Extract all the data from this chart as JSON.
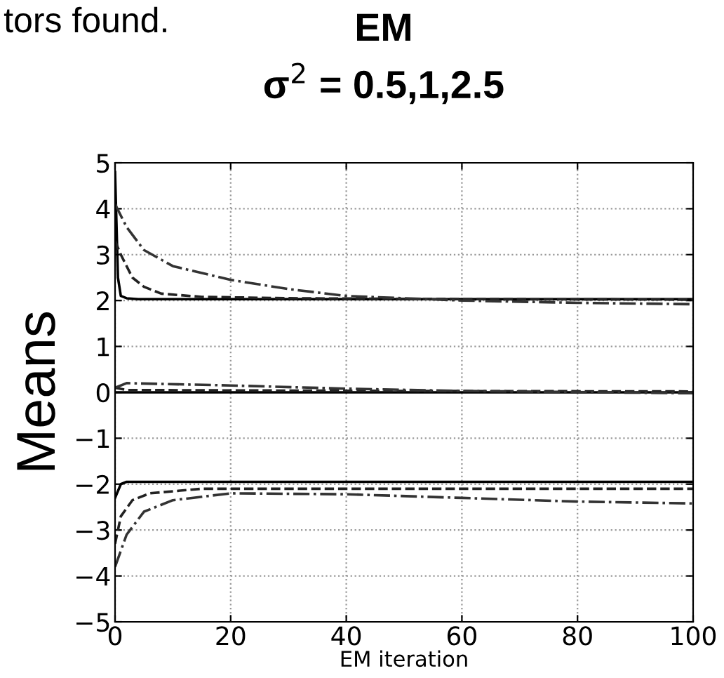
{
  "chart_data": {
    "type": "line",
    "title": "EM",
    "subtitle": "σ$^{2}$ = 0.5,1,2.5",
    "xlabel": "EM iteration",
    "ylabel": "Means",
    "annotations": [
      "tors found."
    ],
    "xlim": [
      0,
      100
    ],
    "ylim": [
      -5,
      5
    ],
    "xticks": [
      0,
      20,
      40,
      60,
      80,
      100
    ],
    "yticks": [
      -5,
      -4,
      -3,
      -2,
      -1,
      0,
      1,
      2,
      3,
      4,
      5
    ],
    "grid": true,
    "marker": "none",
    "series": [
      {
        "color": "#000000",
        "line_style": "solid",
        "x": [
          0,
          0.5,
          1,
          2,
          4,
          100
        ],
        "values": [
          4.8,
          2.5,
          2.1,
          2.05,
          2.03,
          2.03
        ]
      },
      {
        "color": "#222222",
        "line_style": "dashed",
        "x": [
          0,
          1,
          3,
          5,
          8,
          15,
          30,
          60,
          100
        ],
        "values": [
          3.3,
          3.0,
          2.5,
          2.3,
          2.15,
          2.08,
          2.05,
          2.03,
          2.02
        ]
      },
      {
        "color": "#333333",
        "line_style": "dashdot",
        "x": [
          0,
          2,
          5,
          10,
          20,
          30,
          40,
          50,
          60,
          80,
          100
        ],
        "values": [
          4.1,
          3.6,
          3.1,
          2.75,
          2.45,
          2.25,
          2.1,
          2.05,
          2.0,
          1.95,
          1.92
        ]
      },
      {
        "color": "#000000",
        "line_style": "solid",
        "x": [
          0,
          100
        ],
        "values": [
          0,
          0
        ]
      },
      {
        "color": "#222222",
        "line_style": "dashed",
        "x": [
          0,
          2,
          50,
          100
        ],
        "values": [
          0.1,
          0.05,
          0.03,
          0.02
        ]
      },
      {
        "color": "#333333",
        "line_style": "dashdot",
        "x": [
          0,
          2,
          20,
          40,
          60,
          100
        ],
        "values": [
          0.1,
          0.2,
          0.15,
          0.08,
          0.03,
          -0.02
        ]
      },
      {
        "color": "#000000",
        "line_style": "solid",
        "x": [
          0,
          1,
          2,
          100
        ],
        "values": [
          -2.3,
          -2.0,
          -1.95,
          -1.95
        ]
      },
      {
        "color": "#222222",
        "line_style": "dashed",
        "x": [
          0,
          1,
          3,
          6,
          15,
          100
        ],
        "values": [
          -3.3,
          -2.7,
          -2.35,
          -2.2,
          -2.1,
          -2.1
        ]
      },
      {
        "color": "#333333",
        "line_style": "dashdot",
        "x": [
          0,
          2,
          5,
          10,
          20,
          40,
          60,
          80,
          100
        ],
        "values": [
          -3.8,
          -3.1,
          -2.6,
          -2.35,
          -2.2,
          -2.22,
          -2.3,
          -2.38,
          -2.42
        ]
      }
    ]
  }
}
